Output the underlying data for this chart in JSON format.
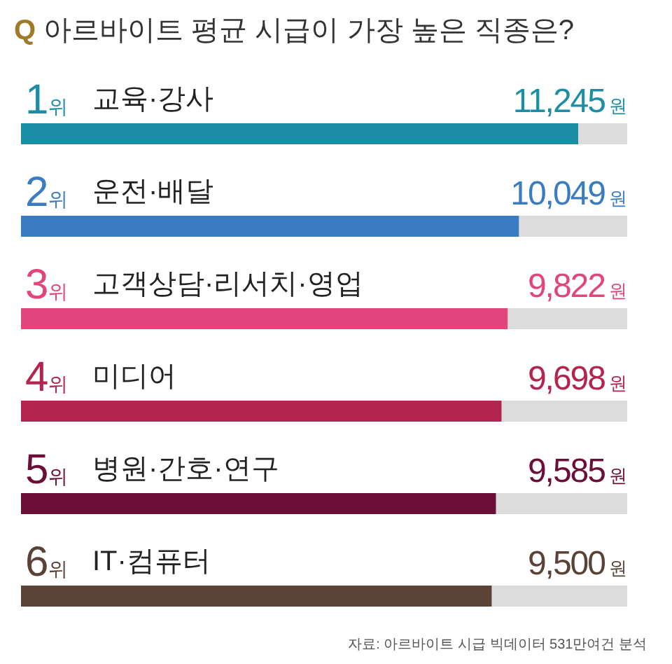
{
  "chart_data": {
    "type": "bar",
    "orientation": "horizontal",
    "title": "Q 아르바이트 평균 시급이 가장 높은 직종은?",
    "categories": [
      "교육·강사",
      "운전·배달",
      "고객상담·리서치·영업",
      "미디어",
      "병원·간호·연구",
      "IT·컴퓨터"
    ],
    "values": [
      11245,
      10049,
      9822,
      9698,
      9585,
      9500
    ],
    "colors": [
      "#1b8ea6",
      "#3a7cc0",
      "#e2457b",
      "#b3244f",
      "#6b0f38",
      "#5b4237"
    ],
    "value_labels": [
      "11,245원",
      "10,049원",
      "9,822원",
      "9,698원",
      "9,585원",
      "9,500원"
    ],
    "annotations": [
      {
        "text": "1위",
        "y": "교육·강사"
      },
      {
        "text": "2위",
        "y": "운전·배달"
      },
      {
        "text": "3위",
        "y": "고객상담·리서치·영업"
      },
      {
        "text": "4위",
        "y": "미디어"
      },
      {
        "text": "5위",
        "y": "병원·간호·연구"
      },
      {
        "text": "6위",
        "y": "IT·컴퓨터"
      },
      "자료: 아르바이트 시급 빅데이터 531만여건 분석"
    ]
  }
}
